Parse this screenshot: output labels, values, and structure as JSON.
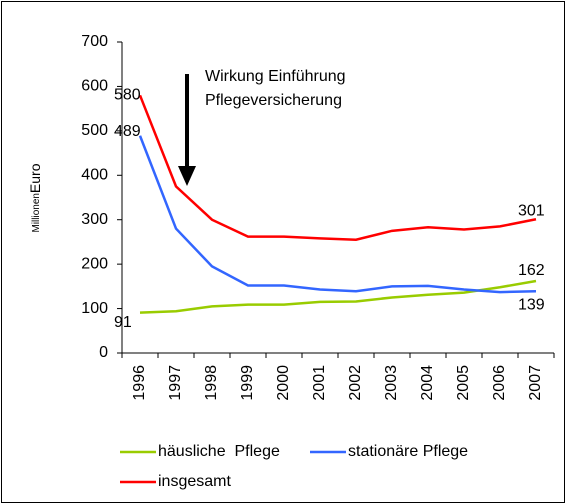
{
  "chart_data": {
    "type": "line",
    "ylabel": [
      "Millionen",
      "Euro"
    ],
    "annotation": [
      "Wirkung Einführung",
      "Pflegeversicherung"
    ],
    "categories": [
      "1996",
      "1997",
      "1998",
      "1999",
      "2000",
      "2001",
      "2002",
      "2003",
      "2004",
      "2005",
      "2006",
      "2007"
    ],
    "series": [
      {
        "name": "häusliche  Pflege",
        "color": "#99cc00",
        "values": [
          91,
          94,
          105,
          109,
          109,
          115,
          116,
          125,
          131,
          136,
          148,
          162
        ]
      },
      {
        "name": "stationäre Pflege",
        "color": "#3366ff",
        "values": [
          489,
          280,
          195,
          152,
          152,
          143,
          139,
          150,
          151,
          143,
          137,
          139
        ]
      },
      {
        "name": "insgesamt",
        "color": "#ff0000",
        "values": [
          580,
          375,
          300,
          262,
          262,
          258,
          255,
          275,
          283,
          278,
          285,
          301
        ]
      }
    ],
    "ylim": [
      0,
      700
    ],
    "yticks": [
      0,
      100,
      200,
      300,
      400,
      500,
      600,
      700
    ],
    "grid": false
  }
}
